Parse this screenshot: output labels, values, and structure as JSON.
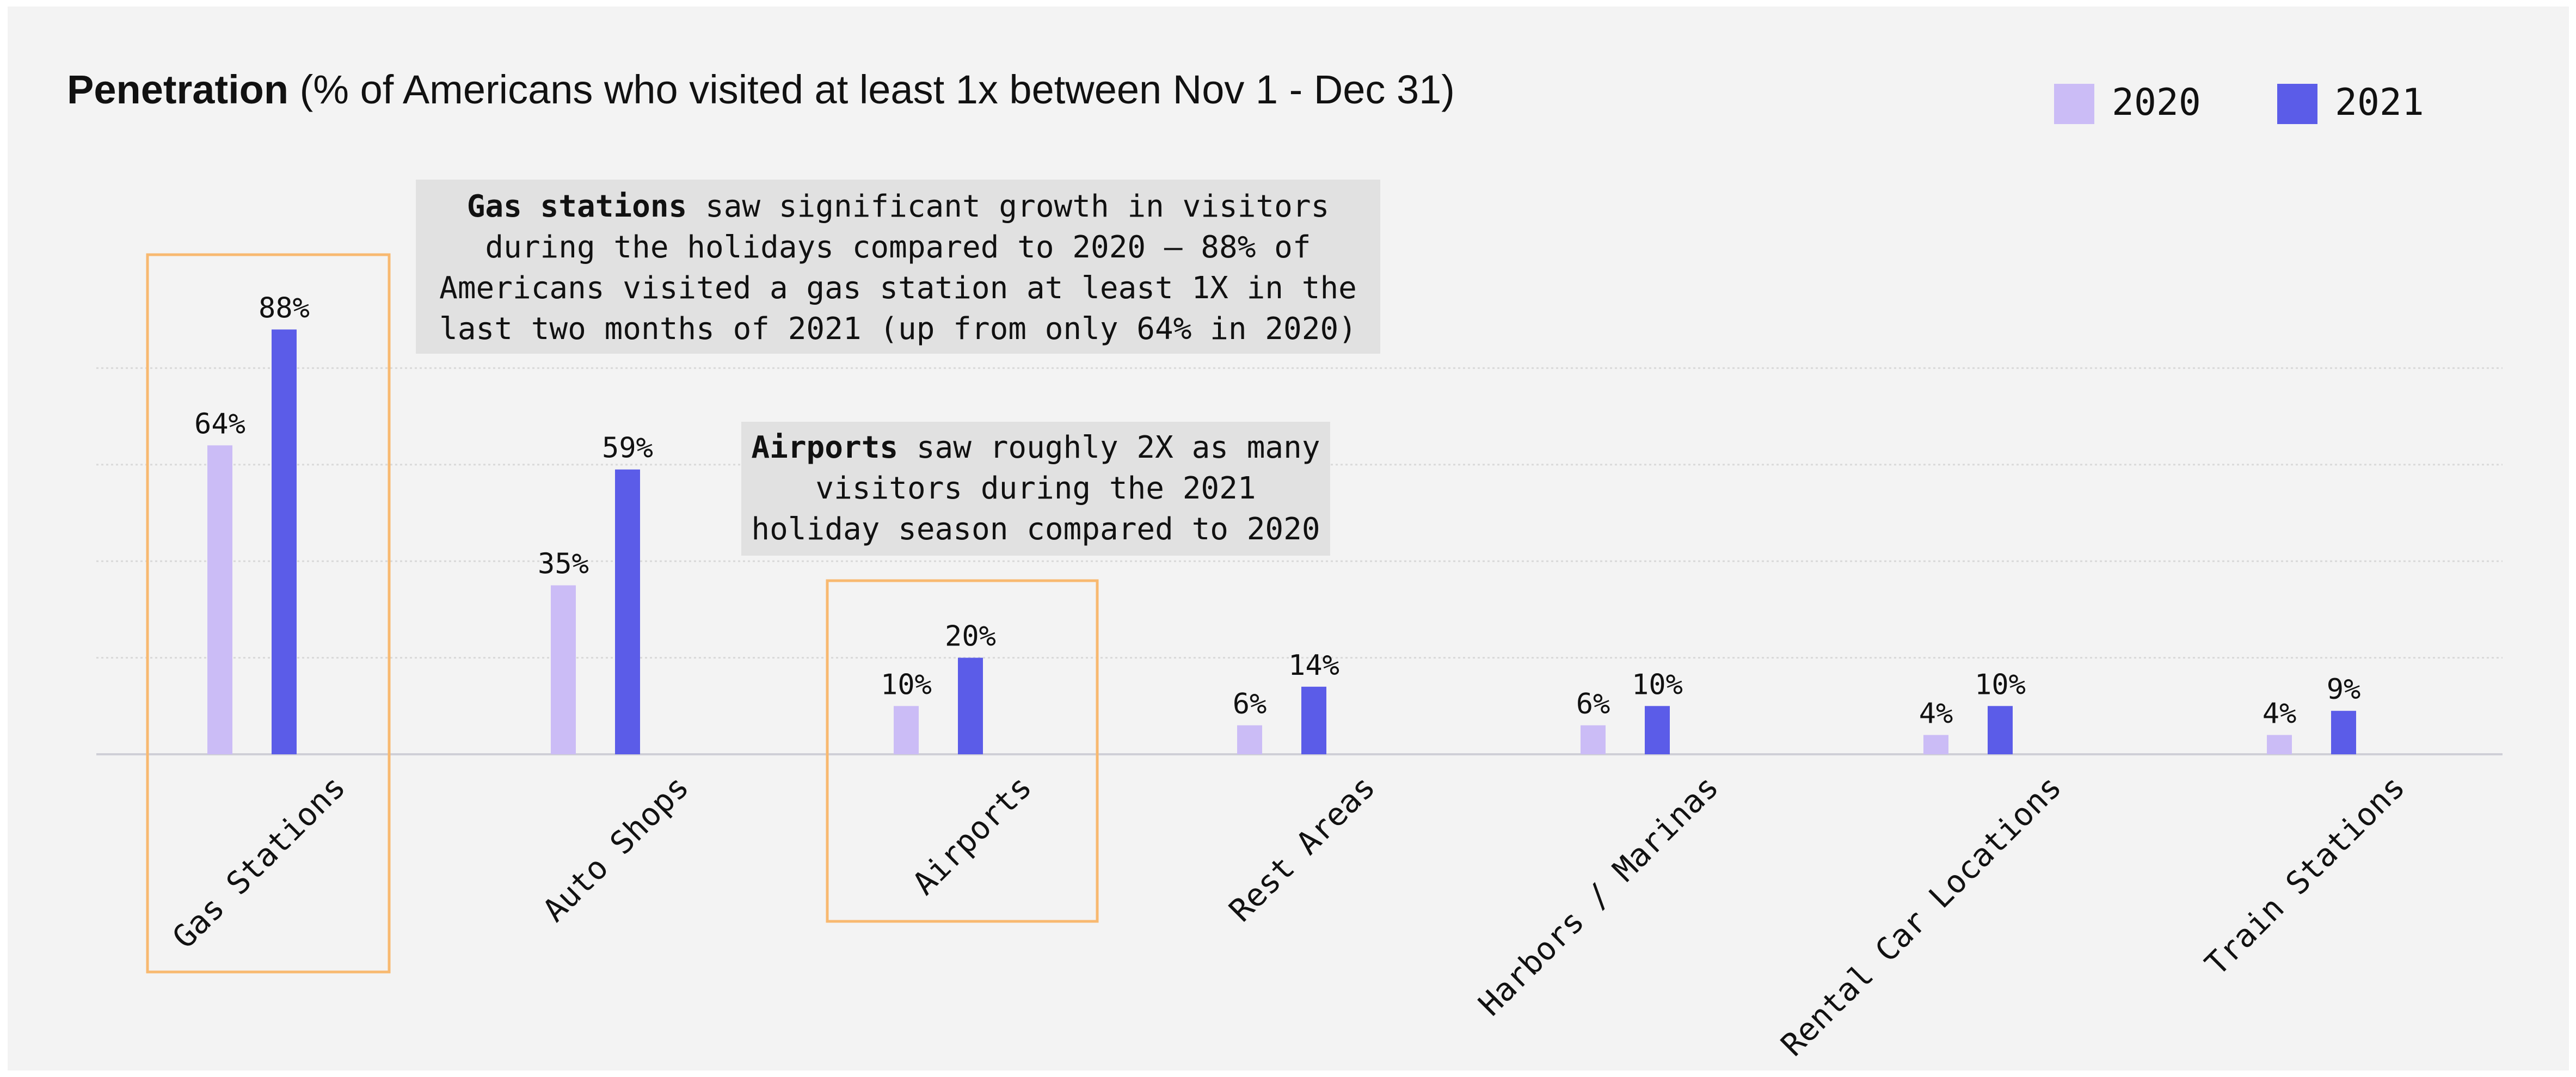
{
  "chart_data": {
    "type": "bar",
    "title_bold": "Penetration",
    "title_rest": " (% of Americans who visited at least 1x between Nov 1 - Dec 31)",
    "categories": [
      "Gas Stations",
      "Auto Shops",
      "Airports",
      "Rest Areas",
      "Harbors / Marinas",
      "Rental Car Locations",
      "Train Stations"
    ],
    "series": [
      {
        "name": "2020",
        "color": "#cbbcf6",
        "values": [
          64,
          35,
          10,
          6,
          6,
          4,
          4
        ],
        "labels": [
          "64%",
          "35%",
          "10%",
          "6%",
          "6%",
          "4%",
          "4%"
        ]
      },
      {
        "name": "2021",
        "color": "#5b5ce8",
        "values": [
          88,
          59,
          20,
          14,
          10,
          10,
          9
        ],
        "labels": [
          "88%",
          "59%",
          "20%",
          "14%",
          "10%",
          "10%",
          "9%"
        ]
      }
    ],
    "ylim": [
      0,
      100
    ],
    "grid": true,
    "legend": "top-right",
    "highlighted_categories": [
      "Gas Stations",
      "Airports"
    ],
    "highlight_color": "#f8b970",
    "annotations": [
      {
        "bold": "Gas stations",
        "rest": " saw significant growth in visitors",
        "lines": [
          "during the holidays compared to 2020 – 88% of",
          "Americans visited a gas station at least 1X in the",
          "last two months of 2021 (up from only 64% in 2020)"
        ]
      },
      {
        "bold": "Airports",
        "rest": " saw roughly 2X as many",
        "lines": [
          "visitors during the 2021",
          "holiday season compared to 2020"
        ]
      }
    ]
  }
}
